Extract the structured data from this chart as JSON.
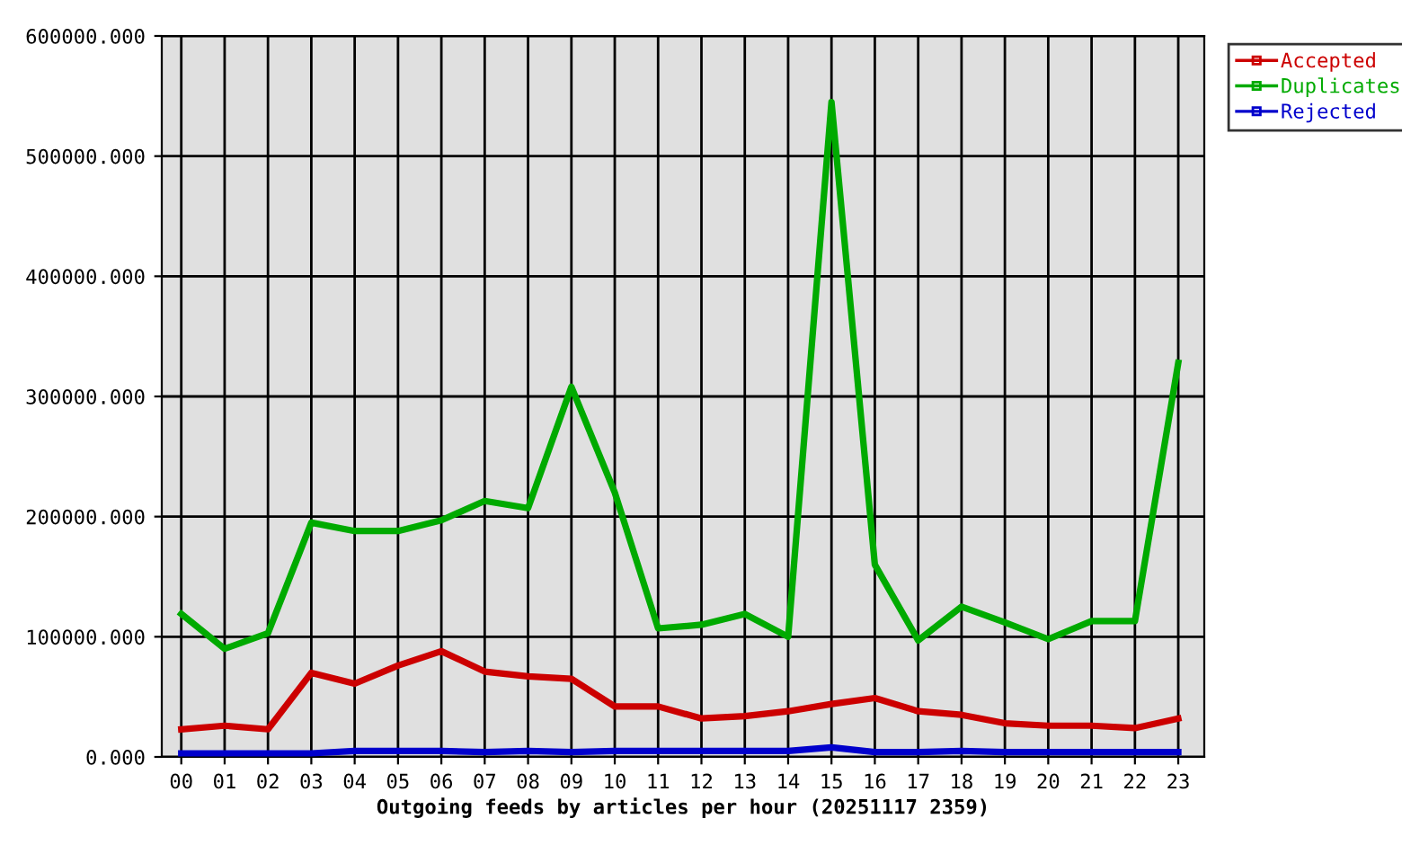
{
  "chart_data": {
    "type": "line",
    "xlabel": "Outgoing feeds by articles per hour (20251117 2359)",
    "categories": [
      "00",
      "01",
      "02",
      "03",
      "04",
      "05",
      "06",
      "07",
      "08",
      "09",
      "10",
      "11",
      "12",
      "13",
      "14",
      "15",
      "16",
      "17",
      "18",
      "19",
      "20",
      "21",
      "22",
      "23"
    ],
    "series": [
      {
        "name": "Accepted",
        "color": "#cc0000",
        "values": [
          23000,
          26000,
          23000,
          70000,
          61000,
          76000,
          88000,
          71000,
          67000,
          65000,
          42000,
          42000,
          32000,
          34000,
          38000,
          44000,
          49000,
          38000,
          35000,
          28000,
          26000,
          26000,
          24000,
          32000
        ]
      },
      {
        "name": "Duplicates",
        "color": "#00aa00",
        "values": [
          119000,
          90000,
          103000,
          195000,
          188000,
          188000,
          197000,
          213000,
          207000,
          308000,
          220000,
          107000,
          110000,
          119000,
          100000,
          545000,
          160000,
          97000,
          125000,
          112000,
          98000,
          113000,
          113000,
          328000
        ]
      },
      {
        "name": "Rejected",
        "color": "#0000cc",
        "values": [
          3000,
          3000,
          3000,
          3000,
          5000,
          5000,
          5000,
          4000,
          5000,
          4000,
          5000,
          5000,
          5000,
          5000,
          5000,
          8000,
          4000,
          4000,
          5000,
          4000,
          4000,
          4000,
          4000,
          4000
        ]
      }
    ],
    "ylim": [
      0,
      600000
    ],
    "yticks": [
      {
        "value": 0,
        "label": "0.000"
      },
      {
        "value": 100000,
        "label": "100000.000"
      },
      {
        "value": 200000,
        "label": "200000.000"
      },
      {
        "value": 300000,
        "label": "300000.000"
      },
      {
        "value": 400000,
        "label": "400000.000"
      },
      {
        "value": 500000,
        "label": "500000.000"
      },
      {
        "value": 600000,
        "label": "600000.000"
      }
    ],
    "grid": true,
    "legend": "top right",
    "marker": "none",
    "line_style": "solid"
  }
}
